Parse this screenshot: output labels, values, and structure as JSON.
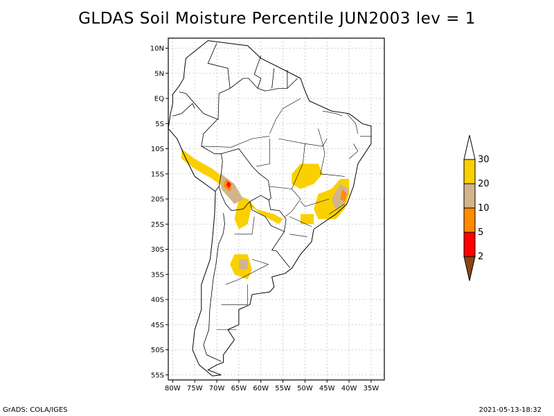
{
  "title": "GLDAS Soil Moisture Percentile JUN2003 lev = 1",
  "lat_labels": [
    "10N",
    "5N",
    "EQ",
    "5S",
    "10S",
    "15S",
    "20S",
    "25S",
    "30S",
    "35S",
    "40S",
    "45S",
    "50S",
    "55S"
  ],
  "lat_values": [
    10,
    5,
    0,
    -5,
    -10,
    -15,
    -20,
    -25,
    -30,
    -35,
    -40,
    -45,
    -50,
    -55
  ],
  "lon_labels": [
    "80W",
    "75W",
    "70W",
    "65W",
    "60W",
    "55W",
    "50W",
    "45W",
    "40W",
    "35W"
  ],
  "lon_values": [
    -80,
    -75,
    -70,
    -65,
    -60,
    -55,
    -50,
    -45,
    -40,
    -35
  ],
  "extent": {
    "lon_min": -81,
    "lon_max": -32,
    "lat_min": -56,
    "lat_max": 12
  },
  "legend": {
    "labels": [
      "30",
      "20",
      "10",
      "5",
      "2"
    ],
    "colors": [
      "#ffffff",
      "#fad000",
      "#d2b48c",
      "#ff8c00",
      "#ff0000",
      "#8b4513"
    ]
  },
  "footer_left": "GrADS: COLA/IGES",
  "footer_right": "2021-05-13-18:32",
  "regions": [
    {
      "category": "20-30",
      "color": "#fad000",
      "points": [
        [
          -78,
          -10
        ],
        [
          -75,
          -12
        ],
        [
          -71,
          -14
        ],
        [
          -68,
          -16
        ],
        [
          -66,
          -19
        ],
        [
          -63,
          -20
        ],
        [
          -61,
          -22
        ],
        [
          -57,
          -23
        ],
        [
          -55,
          -24
        ],
        [
          -56,
          -25
        ],
        [
          -60,
          -23
        ],
        [
          -63,
          -21
        ],
        [
          -65,
          -20
        ],
        [
          -68,
          -18
        ],
        [
          -71,
          -16
        ],
        [
          -75,
          -14
        ],
        [
          -78,
          -12
        ]
      ]
    },
    {
      "category": "20-30",
      "color": "#fad000",
      "points": [
        [
          -65,
          -20
        ],
        [
          -62,
          -21
        ],
        [
          -63,
          -25
        ],
        [
          -65,
          -26
        ],
        [
          -66,
          -24
        ]
      ]
    },
    {
      "category": "20-30",
      "color": "#fad000",
      "points": [
        [
          -51,
          -13
        ],
        [
          -47,
          -13
        ],
        [
          -46,
          -15
        ],
        [
          -48,
          -17
        ],
        [
          -51,
          -18
        ],
        [
          -53,
          -17
        ],
        [
          -53,
          -15
        ]
      ]
    },
    {
      "category": "20-30",
      "color": "#fad000",
      "points": [
        [
          -42,
          -16
        ],
        [
          -40,
          -16
        ],
        [
          -40,
          -19
        ],
        [
          -41,
          -22
        ],
        [
          -43,
          -24
        ],
        [
          -47,
          -24
        ],
        [
          -48,
          -22
        ],
        [
          -47,
          -19
        ],
        [
          -44,
          -18
        ]
      ]
    },
    {
      "category": "20-30",
      "color": "#fad000",
      "points": [
        [
          -66,
          -31
        ],
        [
          -63,
          -31
        ],
        [
          -62,
          -34
        ],
        [
          -63,
          -36
        ],
        [
          -66,
          -35
        ],
        [
          -67,
          -33
        ]
      ]
    },
    {
      "category": "20-30",
      "color": "#fad000",
      "points": [
        [
          -51,
          -23
        ],
        [
          -48,
          -23
        ],
        [
          -48,
          -25
        ],
        [
          -51,
          -25
        ]
      ]
    },
    {
      "category": "10-20",
      "color": "#d2b48c",
      "points": [
        [
          -69,
          -15
        ],
        [
          -66,
          -17
        ],
        [
          -64,
          -20
        ],
        [
          -66,
          -21
        ],
        [
          -69,
          -18
        ]
      ]
    },
    {
      "category": "10-20",
      "color": "#d2b48c",
      "points": [
        [
          -42,
          -17
        ],
        [
          -40,
          -18
        ],
        [
          -41,
          -21
        ],
        [
          -43,
          -22
        ],
        [
          -44,
          -20
        ]
      ]
    },
    {
      "category": "10-20",
      "color": "#d2b48c",
      "points": [
        [
          -65,
          -32
        ],
        [
          -63,
          -32
        ],
        [
          -63,
          -34
        ],
        [
          -65,
          -34
        ]
      ]
    },
    {
      "category": "5-10",
      "color": "#ff8c00",
      "points": [
        [
          -68,
          -16
        ],
        [
          -66.5,
          -17
        ],
        [
          -67,
          -18.5
        ],
        [
          -68.5,
          -17.5
        ]
      ]
    },
    {
      "category": "5-10",
      "color": "#ff8c00",
      "points": [
        [
          -41.5,
          -18
        ],
        [
          -40.5,
          -19
        ],
        [
          -41,
          -20.5
        ],
        [
          -42,
          -20
        ]
      ]
    },
    {
      "category": "2-5",
      "color": "#ff0000",
      "points": [
        [
          -67.5,
          -16.5
        ],
        [
          -66.8,
          -17
        ],
        [
          -67.2,
          -17.8
        ],
        [
          -67.8,
          -17.2
        ]
      ]
    }
  ],
  "coastline": [
    [
      -77,
      8
    ],
    [
      -72,
      11.5
    ],
    [
      -63,
      10.5
    ],
    [
      -60,
      8
    ],
    [
      -55,
      5.8
    ],
    [
      -51,
      4
    ],
    [
      -50,
      1.5
    ],
    [
      -49,
      -0.5
    ],
    [
      -44,
      -2.5
    ],
    [
      -40,
      -3
    ],
    [
      -37,
      -5
    ],
    [
      -35,
      -5.5
    ],
    [
      -35,
      -9
    ],
    [
      -38,
      -13
    ],
    [
      -39,
      -17.5
    ],
    [
      -40.5,
      -21
    ],
    [
      -43,
      -23
    ],
    [
      -48,
      -26
    ],
    [
      -48.5,
      -28.5
    ],
    [
      -51,
      -31
    ],
    [
      -53,
      -33.8
    ],
    [
      -54.5,
      -34.8
    ],
    [
      -57.5,
      -35.5
    ],
    [
      -57,
      -37.5
    ],
    [
      -58,
      -38.5
    ],
    [
      -62,
      -39
    ],
    [
      -62.5,
      -41
    ],
    [
      -65,
      -42
    ],
    [
      -65,
      -45
    ],
    [
      -67.5,
      -46
    ],
    [
      -66,
      -48
    ],
    [
      -68.5,
      -51
    ],
    [
      -68.5,
      -52.5
    ],
    [
      -70,
      -53
    ],
    [
      -72,
      -54
    ],
    [
      -69,
      -55
    ],
    [
      -71,
      -55.2
    ],
    [
      -74,
      -53
    ],
    [
      -75.5,
      -50
    ],
    [
      -75,
      -46
    ],
    [
      -73.5,
      -42
    ],
    [
      -73.5,
      -37
    ],
    [
      -71.5,
      -32
    ],
    [
      -71,
      -28
    ],
    [
      -70.5,
      -23
    ],
    [
      -70.3,
      -18.5
    ],
    [
      -75,
      -15.5
    ],
    [
      -77,
      -12
    ],
    [
      -79,
      -8
    ],
    [
      -81,
      -6
    ],
    [
      -80.5,
      -3
    ],
    [
      -80,
      -1
    ],
    [
      -80,
      0.8
    ],
    [
      -78.5,
      2.5
    ],
    [
      -77.5,
      4
    ],
    [
      -77.3,
      6
    ],
    [
      -77,
      8
    ]
  ],
  "borders": [
    [
      [
        -70,
        11
      ],
      [
        -72,
        7
      ],
      [
        -67.5,
        6
      ],
      [
        -67,
        2
      ],
      [
        -69.5,
        1
      ],
      [
        -69.7,
        -4.2
      ],
      [
        -73,
        -3
      ],
      [
        -75,
        -1
      ],
      [
        -77,
        1
      ],
      [
        -78.5,
        1.3
      ]
    ],
    [
      [
        -80,
        -3.5
      ],
      [
        -78,
        -3
      ],
      [
        -75.5,
        -1
      ],
      [
        -75,
        -2
      ]
    ],
    [
      [
        -69.9,
        -4.2
      ],
      [
        -73,
        -7
      ],
      [
        -73.5,
        -9.5
      ],
      [
        -70.5,
        -11
      ],
      [
        -69,
        -11
      ],
      [
        -68.7,
        -12.5
      ],
      [
        -69,
        -15
      ],
      [
        -69.5,
        -17.5
      ],
      [
        -70.3,
        -18.4
      ]
    ],
    [
      [
        -69,
        -11
      ],
      [
        -65,
        -10
      ],
      [
        -62,
        -13.5
      ],
      [
        -60.3,
        -15
      ],
      [
        -58.3,
        -16.3
      ],
      [
        -57.7,
        -19.8
      ],
      [
        -58.2,
        -20.2
      ],
      [
        -60,
        -19.3
      ],
      [
        -62.5,
        -20.5
      ],
      [
        -64,
        -22
      ],
      [
        -66.7,
        -22.3
      ],
      [
        -68,
        -21
      ],
      [
        -69,
        -19
      ],
      [
        -69.5,
        -17.5
      ]
    ],
    [
      [
        -62.5,
        -20.5
      ],
      [
        -62,
        -22.2
      ],
      [
        -59,
        -23.5
      ],
      [
        -57.7,
        -25.3
      ],
      [
        -54.7,
        -26.5
      ],
      [
        -54.3,
        -24
      ],
      [
        -55.8,
        -22.3
      ],
      [
        -57.8,
        -22.1
      ],
      [
        -58.2,
        -20.2
      ]
    ],
    [
      [
        -54.7,
        -26.5
      ],
      [
        -57.5,
        -30.2
      ],
      [
        -56.5,
        -30.3
      ],
      [
        -53.4,
        -33.7
      ]
    ],
    [
      [
        -68.5,
        -22.8
      ],
      [
        -68.2,
        -25
      ],
      [
        -68.6,
        -27
      ],
      [
        -69.6,
        -29
      ],
      [
        -70.2,
        -33
      ],
      [
        -70.8,
        -36
      ],
      [
        -71.2,
        -39
      ],
      [
        -71.6,
        -42
      ],
      [
        -71.8,
        -46
      ],
      [
        -73,
        -49
      ],
      [
        -72.3,
        -51
      ],
      [
        -69,
        -52.3
      ]
    ],
    [
      [
        -60,
        8.5
      ],
      [
        -61.5,
        4.8
      ],
      [
        -60,
        4
      ],
      [
        -60.7,
        2
      ],
      [
        -59,
        1.5
      ],
      [
        -57,
        1.8
      ],
      [
        -56,
        2
      ],
      [
        -54,
        2
      ],
      [
        -51.7,
        4
      ]
    ],
    [
      [
        -57,
        6
      ],
      [
        -57.5,
        2
      ]
    ],
    [
      [
        -54,
        5.7
      ],
      [
        -54,
        2
      ]
    ],
    [
      [
        -67,
        2
      ],
      [
        -64,
        4
      ],
      [
        -62.8,
        4
      ],
      [
        -60.7,
        2
      ]
    ]
  ],
  "state_lines": [
    [
      [
        -73.5,
        -9.5
      ],
      [
        -66.7,
        -9.7
      ],
      [
        -62,
        -8
      ],
      [
        -58,
        -7.5
      ]
    ],
    [
      [
        -58,
        -8
      ],
      [
        -58,
        -13
      ],
      [
        -61,
        -13.5
      ]
    ],
    [
      [
        -50,
        -9
      ],
      [
        -50.5,
        -13
      ],
      [
        -53,
        -18
      ]
    ],
    [
      [
        -56,
        -8
      ],
      [
        -50,
        -9
      ],
      [
        -46,
        -9.5
      ],
      [
        -45,
        -8
      ]
    ],
    [
      [
        -58,
        -17.5
      ],
      [
        -53,
        -18
      ],
      [
        -51,
        -20
      ],
      [
        -53,
        -22.5
      ],
      [
        -54.5,
        -23.5
      ]
    ],
    [
      [
        -47,
        -6
      ],
      [
        -46,
        -9
      ],
      [
        -45.5,
        -11
      ],
      [
        -46.5,
        -15
      ],
      [
        -41,
        -15.5
      ]
    ],
    [
      [
        -51,
        0
      ],
      [
        -55,
        -2
      ],
      [
        -56.5,
        -4
      ],
      [
        -58,
        -7
      ]
    ],
    [
      [
        -46,
        -2.5
      ],
      [
        -43,
        -3
      ],
      [
        -41.5,
        -3.5
      ]
    ],
    [
      [
        -53.5,
        -23.5
      ],
      [
        -48.5,
        -25.5
      ]
    ],
    [
      [
        -53.5,
        -27
      ],
      [
        -49.5,
        -27.5
      ]
    ],
    [
      [
        -44.5,
        -20
      ],
      [
        -50,
        -21.5
      ],
      [
        -51,
        -20.5
      ]
    ],
    [
      [
        -41,
        -21
      ],
      [
        -44.5,
        -23
      ]
    ],
    [
      [
        -39,
        -9
      ],
      [
        -38,
        -10.5
      ],
      [
        -40,
        -12
      ]
    ],
    [
      [
        -38,
        -7
      ],
      [
        -38.5,
        -5
      ],
      [
        -40.5,
        -3
      ]
    ],
    [
      [
        -35,
        -7.5
      ],
      [
        -37.5,
        -7.5
      ]
    ],
    [
      [
        -66,
        -27
      ],
      [
        -62,
        -27
      ],
      [
        -61.5,
        -23.5
      ]
    ],
    [
      [
        -62,
        -32
      ],
      [
        -58.3,
        -33
      ],
      [
        -65,
        -36
      ],
      [
        -68,
        -37
      ]
    ],
    [
      [
        -63,
        -37
      ],
      [
        -63,
        -41
      ],
      [
        -69,
        -41
      ]
    ],
    [
      [
        -70,
        -46
      ],
      [
        -65.5,
        -46
      ]
    ]
  ]
}
